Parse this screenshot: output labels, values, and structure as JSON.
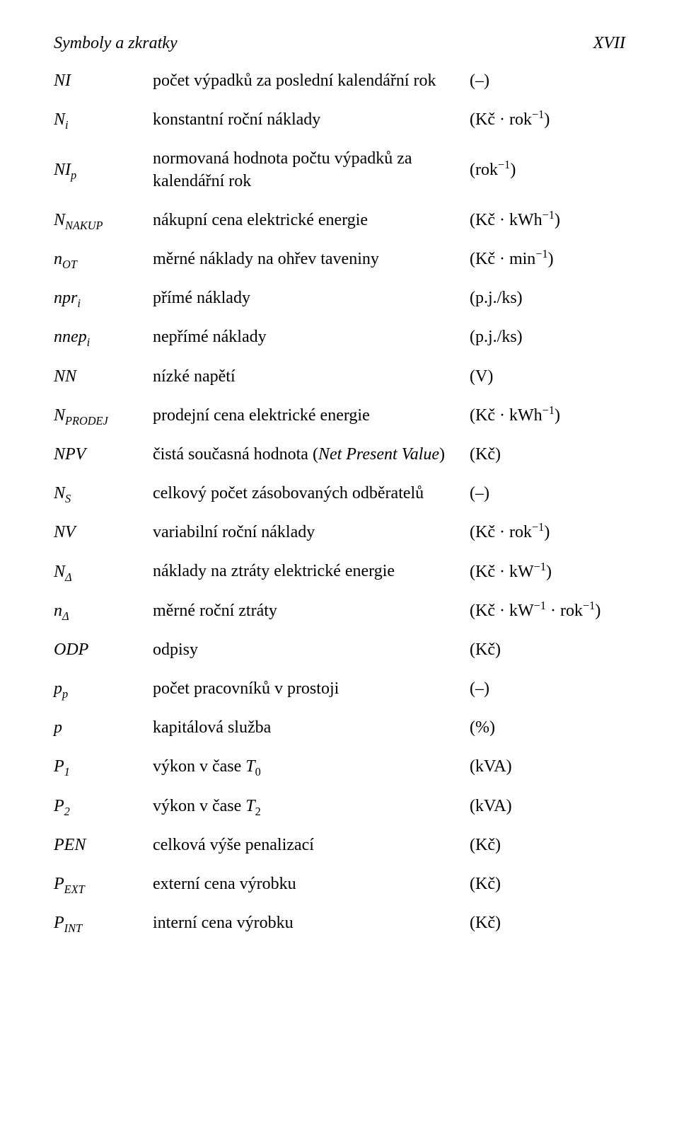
{
  "header": {
    "left": "Symboly a zkratky",
    "right": "XVII"
  },
  "desc_static": {
    "npv": "čistá současná hodnota (",
    "npv_it": "Net Present Value",
    "npv_end": ")"
  },
  "rows": [
    {
      "sym_html": "<span class=\"it\">NI</span>",
      "desc": "počet výpadků za poslední kalendářní rok",
      "unit_html": "(–)"
    },
    {
      "sym_html": "<span class=\"it\">N<sub>i</sub></span>",
      "desc": "konstantní roční náklady",
      "unit_html": "(Kč · rok<sup>−1</sup>)"
    },
    {
      "sym_html": "<span class=\"it\">NI<sub>p</sub></span>",
      "desc": "normovaná hodnota počtu výpadků za kalendářní rok",
      "unit_html": "(rok<sup>−1</sup>)"
    },
    {
      "sym_html": "<span class=\"it\">N<sub>NAKUP</sub></span>",
      "desc": "nákupní cena elektrické energie",
      "unit_html": "(Kč · kWh<sup>−1</sup>)"
    },
    {
      "sym_html": "<span class=\"it\">n<sub>OT</sub></span>",
      "desc": "měrné náklady na ohřev taveniny",
      "unit_html": "(Kč · min<sup>−1</sup>)"
    },
    {
      "sym_html": "<span class=\"it\">npr<sub>i</sub></span>",
      "desc": "přímé náklady",
      "unit_html": "(p.j./ks)"
    },
    {
      "sym_html": "<span class=\"it\">nnep<sub>i</sub></span>",
      "desc": "nepřímé náklady",
      "unit_html": "(p.j./ks)"
    },
    {
      "sym_html": "<span class=\"it\">NN</span>",
      "desc": "nízké napětí",
      "unit_html": "(V)"
    },
    {
      "sym_html": "<span class=\"it\">N<sub>PRODEJ</sub></span>",
      "desc": "prodejní cena elektrické energie",
      "unit_html": "(Kč · kWh<sup>−1</sup>)"
    },
    {
      "sym_html": "<span class=\"it\">NPV</span>",
      "desc_key": "npv_composite",
      "unit_html": "(Kč)"
    },
    {
      "sym_html": "<span class=\"it\">N<sub>S</sub></span>",
      "desc": "celkový počet zásobovaných odběratelů",
      "unit_html": "(–)"
    },
    {
      "sym_html": "<span class=\"it\">NV</span>",
      "desc": "variabilní roční náklady",
      "unit_html": "(Kč · rok<sup>−1</sup>)"
    },
    {
      "sym_html": "<span class=\"it\">N<sub>Δ</sub></span>",
      "desc": "náklady na ztráty elektrické energie",
      "unit_html": "(Kč · kW<sup>−1</sup>)"
    },
    {
      "sym_html": "<span class=\"it\">n<sub>Δ</sub></span>",
      "desc": "měrné roční ztráty",
      "unit_html": "(Kč · kW<sup>−1</sup> · rok<sup>−1</sup>)"
    },
    {
      "sym_html": "<span class=\"it\">ODP</span>",
      "desc": "odpisy",
      "unit_html": "(Kč)"
    },
    {
      "sym_html": "<span class=\"it\">p<sub>p</sub></span>",
      "desc": "počet pracovníků v prostoji",
      "unit_html": "(–)"
    },
    {
      "sym_html": "<span class=\"it\">p</span>",
      "desc": "kapitálová služba",
      "unit_html": "(%)"
    },
    {
      "sym_html": "<span class=\"it\">P</span><sub>1</sub>",
      "desc_html": "výkon v čase <span class=\"it\">T</span><sub>0</sub>",
      "unit_html": "(kVA)"
    },
    {
      "sym_html": "<span class=\"it\">P</span><sub>2</sub>",
      "desc_html": "výkon v čase <span class=\"it\">T</span><sub>2</sub>",
      "unit_html": "(kVA)"
    },
    {
      "sym_html": "<span class=\"it\">PEN</span>",
      "desc": "celková výše penalizací",
      "unit_html": "(Kč)"
    },
    {
      "sym_html": "<span class=\"it\">P<sub>EXT</sub></span>",
      "desc": "externí cena výrobku",
      "unit_html": "(Kč)"
    },
    {
      "sym_html": "<span class=\"it\">P<sub>INT</sub></span>",
      "desc": "interní cena výrobku",
      "unit_html": "(Kč)"
    }
  ]
}
